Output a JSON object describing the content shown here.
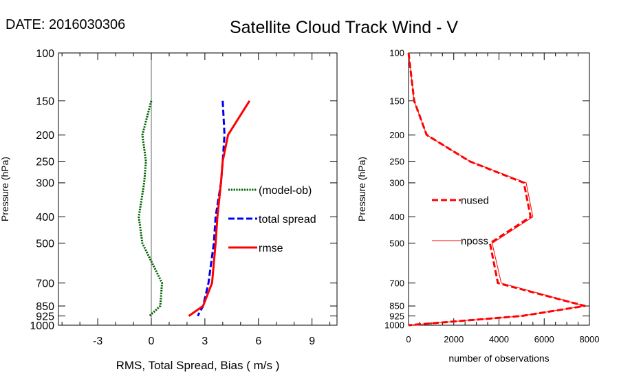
{
  "header": {
    "date_label": "DATE: 2016030306",
    "title": "Satellite Cloud Track Wind - V"
  },
  "chart_data": [
    {
      "type": "line",
      "xlabel": "RMS, Total Spread, Bias ( m/s )",
      "ylabel": "Pressure (hPa)",
      "xlim": [
        -5.2,
        10.4
      ],
      "ylim": [
        1000,
        100
      ],
      "yscale": "log",
      "x_ticks": [
        -3,
        0,
        3,
        6,
        9
      ],
      "x_tick_labels": [
        "-3",
        "0",
        "3",
        "6",
        "9"
      ],
      "y_ticks": [
        100,
        150,
        200,
        250,
        300,
        400,
        500,
        700,
        850,
        925,
        1000
      ],
      "y_tick_labels": [
        "100",
        "150",
        "200",
        "250",
        "300",
        "400",
        "500",
        "700",
        "850",
        "925",
        "1000"
      ],
      "zero_line": 0,
      "legend_position": "right-center",
      "series": [
        {
          "name": "(model-ob)",
          "color": "#006400",
          "style": "dotted",
          "points": [
            [
              0.0,
              150
            ],
            [
              -0.5,
              200
            ],
            [
              -0.3,
              250
            ],
            [
              -0.4,
              300
            ],
            [
              -0.7,
              400
            ],
            [
              -0.5,
              500
            ],
            [
              0.6,
              700
            ],
            [
              0.5,
              850
            ],
            [
              -0.1,
              925
            ]
          ]
        },
        {
          "name": "total spread",
          "color": "#0000ee",
          "style": "dashed",
          "points": [
            [
              4.0,
              150
            ],
            [
              4.1,
              200
            ],
            [
              4.0,
              250
            ],
            [
              3.9,
              300
            ],
            [
              3.6,
              400
            ],
            [
              3.5,
              500
            ],
            [
              3.2,
              700
            ],
            [
              2.9,
              850
            ],
            [
              2.6,
              925
            ]
          ]
        },
        {
          "name": "rmse",
          "color": "#ff0000",
          "style": "solid",
          "points": [
            [
              5.5,
              150
            ],
            [
              4.3,
              200
            ],
            [
              4.0,
              250
            ],
            [
              3.9,
              300
            ],
            [
              3.7,
              400
            ],
            [
              3.6,
              500
            ],
            [
              3.4,
              700
            ],
            [
              2.9,
              850
            ],
            [
              2.1,
              925
            ]
          ]
        }
      ]
    },
    {
      "type": "line",
      "xlabel": "number of observations",
      "ylabel": "Pressure (hPa)",
      "xlim": [
        0,
        8000
      ],
      "ylim": [
        1000,
        100
      ],
      "yscale": "log",
      "x_ticks": [
        0,
        2000,
        4000,
        6000,
        8000
      ],
      "x_tick_labels": [
        "0",
        "2000",
        "4000",
        "6000",
        "8000"
      ],
      "y_ticks": [
        100,
        150,
        200,
        250,
        300,
        400,
        500,
        700,
        850,
        925,
        1000
      ],
      "y_tick_labels": [
        "100",
        "150",
        "200",
        "250",
        "300",
        "400",
        "500",
        "700",
        "850",
        "925",
        "1000"
      ],
      "legend_position": "left-center",
      "series": [
        {
          "name": "nused",
          "color": "#ff0000",
          "style": "dashed",
          "points": [
            [
              0,
              100
            ],
            [
              250,
              150
            ],
            [
              800,
              200
            ],
            [
              2700,
              250
            ],
            [
              5100,
              300
            ],
            [
              5400,
              400
            ],
            [
              3600,
              500
            ],
            [
              3950,
              700
            ],
            [
              7800,
              850
            ],
            [
              5000,
              925
            ],
            [
              0,
              1000
            ]
          ]
        },
        {
          "name": "nposs",
          "color": "#ff0000",
          "style": "solid",
          "points": [
            [
              0,
              100
            ],
            [
              250,
              150
            ],
            [
              800,
              200
            ],
            [
              2700,
              250
            ],
            [
              5200,
              300
            ],
            [
              5500,
              400
            ],
            [
              3700,
              500
            ],
            [
              4100,
              700
            ],
            [
              7800,
              850
            ],
            [
              5000,
              925
            ],
            [
              0,
              1000
            ]
          ]
        }
      ]
    }
  ]
}
